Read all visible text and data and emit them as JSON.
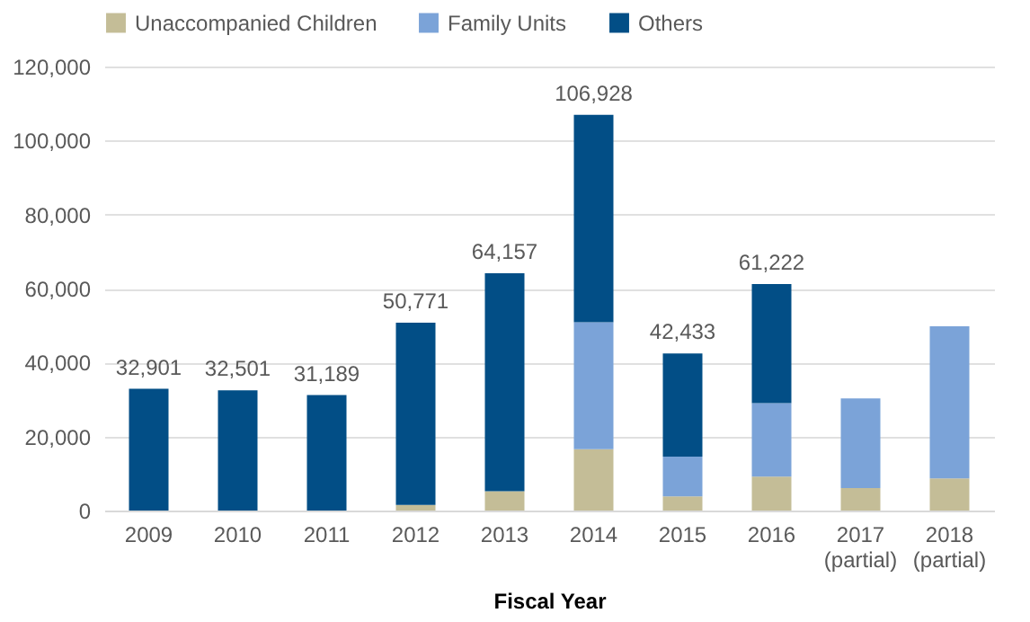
{
  "chart_data": {
    "type": "bar",
    "stacked": true,
    "xlabel": "Fiscal Year",
    "categories": [
      "2009",
      "2010",
      "2011",
      "2012",
      "2013",
      "2014",
      "2015",
      "2016",
      "2017\n(partial)",
      "2018\n(partial)"
    ],
    "series": [
      {
        "name": "Unaccompanied Children",
        "color": "#c4bd97",
        "values": [
          0,
          0,
          0,
          1500,
          5200,
          16600,
          3800,
          9200,
          6100,
          8700
        ]
      },
      {
        "name": "Family Units",
        "color": "#7ba3d8",
        "values": [
          0,
          0,
          0,
          0,
          0,
          34300,
          10800,
          19800,
          24200,
          41100
        ]
      },
      {
        "name": "Others",
        "color": "#024e86",
        "values": [
          32901,
          32501,
          31189,
          49271,
          58957,
          56028,
          27833,
          32222,
          0,
          0
        ]
      }
    ],
    "totals": [
      "32,901",
      "32,501",
      "31,189",
      "50,771",
      "64,157",
      "106,928",
      "42,433",
      "61,222",
      null,
      null
    ],
    "ylim": [
      0,
      120000
    ],
    "yticks": [
      0,
      {
        "value": 20000,
        "label": "20,000"
      },
      {
        "value": 40000,
        "label": "40,000"
      },
      {
        "value": 60000,
        "label": "60,000"
      },
      {
        "value": 80000,
        "label": "80,000"
      },
      {
        "value": 100000,
        "label": "100,000"
      },
      {
        "value": 120000,
        "label": "120,000"
      }
    ],
    "grid": "y",
    "legend": "top"
  }
}
